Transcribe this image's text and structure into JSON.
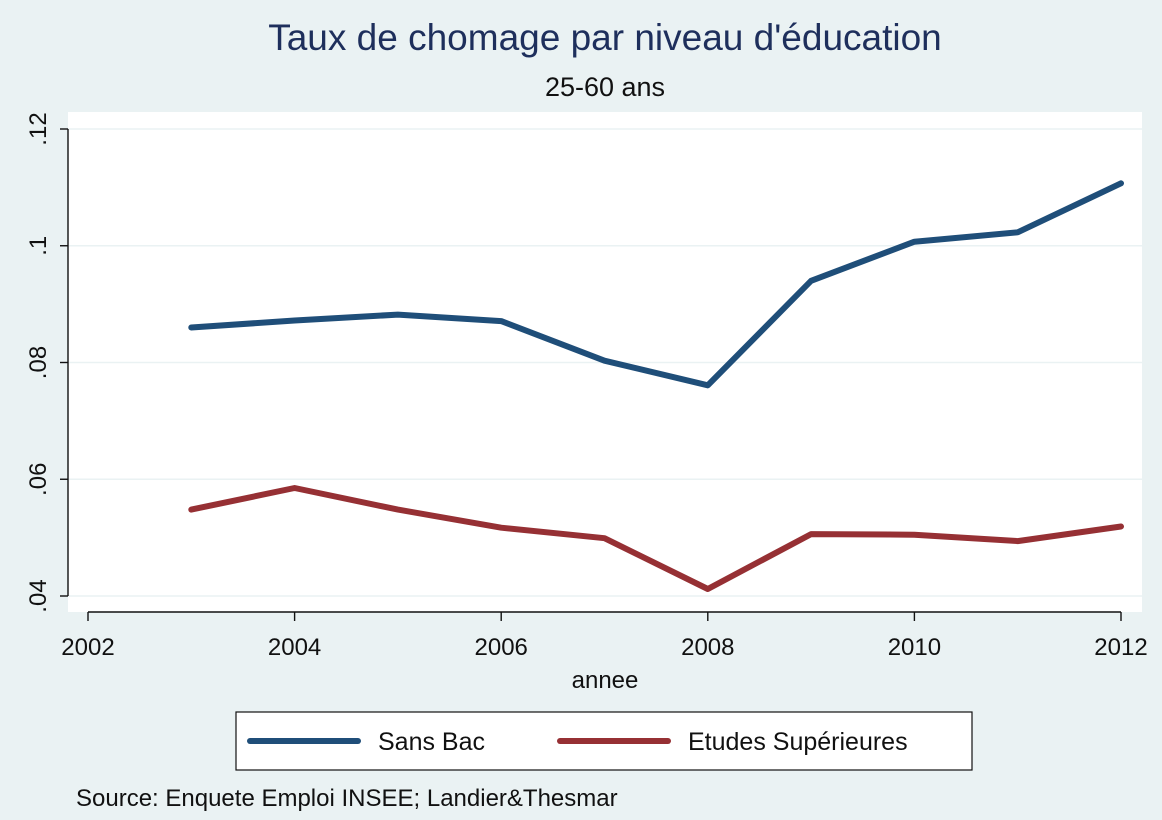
{
  "chart_data": {
    "type": "line",
    "title": "Taux de chomage par niveau d'éducation",
    "subtitle": "25-60 ans",
    "xlabel": "annee",
    "ylabel": "",
    "xlim": [
      2002,
      2012
    ],
    "ylim": [
      0.04,
      0.12
    ],
    "x_ticks": [
      2002,
      2004,
      2006,
      2008,
      2010,
      2012
    ],
    "y_ticks": [
      0.04,
      0.06,
      0.08,
      0.1,
      0.12
    ],
    "y_tick_labels": [
      ".04",
      ".06",
      ".08",
      ".1",
      ".12"
    ],
    "grid": true,
    "legend_position": "bottom",
    "x": [
      2003,
      2004,
      2005,
      2006,
      2007,
      2008,
      2009,
      2010,
      2011,
      2012
    ],
    "series": [
      {
        "name": "Sans Bac",
        "color": "#1f4e79",
        "values": [
          0.086,
          0.0872,
          0.0882,
          0.0871,
          0.0803,
          0.0761,
          0.094,
          0.1007,
          0.1023,
          0.1107
        ]
      },
      {
        "name": "Etudes Supérieures",
        "color": "#963034",
        "values": [
          0.0548,
          0.0585,
          0.0548,
          0.0517,
          0.0499,
          0.0412,
          0.0506,
          0.0505,
          0.0494,
          0.0519
        ]
      }
    ],
    "note": "Source: Enquete Emploi INSEE; Landier&Thesmar"
  },
  "colors": {
    "background": "#eaf2f3",
    "plot_background": "#ffffff",
    "grid": "#eaf2f3",
    "title": "#1e2f5c"
  }
}
